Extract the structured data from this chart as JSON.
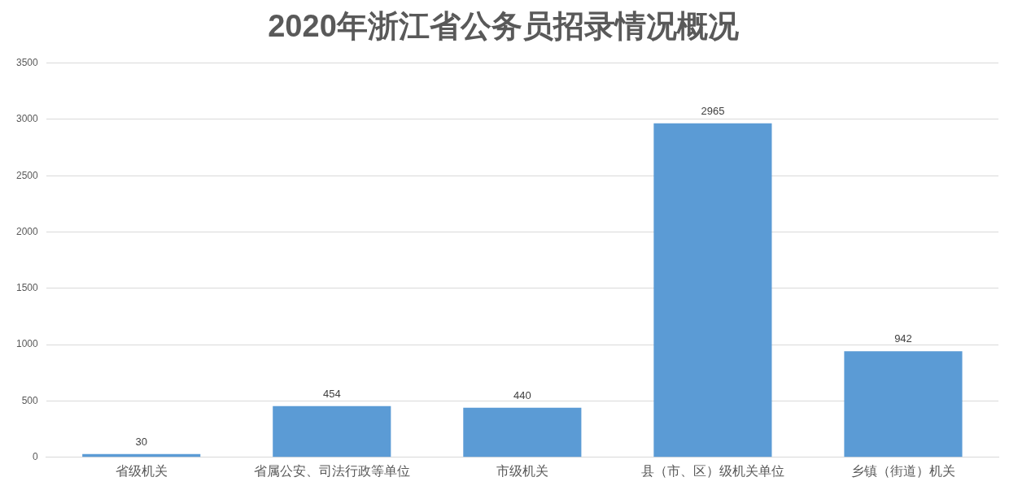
{
  "chart_data": {
    "type": "bar",
    "title": "2020年浙江省公务员招录情况概况",
    "categories": [
      "省级机关",
      "省属公安、司法行政等单位",
      "市级机关",
      "县（市、区）级机关单位",
      "乡镇（街道）机关"
    ],
    "values": [
      30,
      454,
      440,
      2965,
      942
    ],
    "color": "#5b9bd5",
    "ylim": [
      0,
      3500
    ],
    "yticks": [
      0,
      500,
      1000,
      1500,
      2000,
      2500,
      3000,
      3500
    ],
    "grid": "y",
    "data_labels": true
  }
}
